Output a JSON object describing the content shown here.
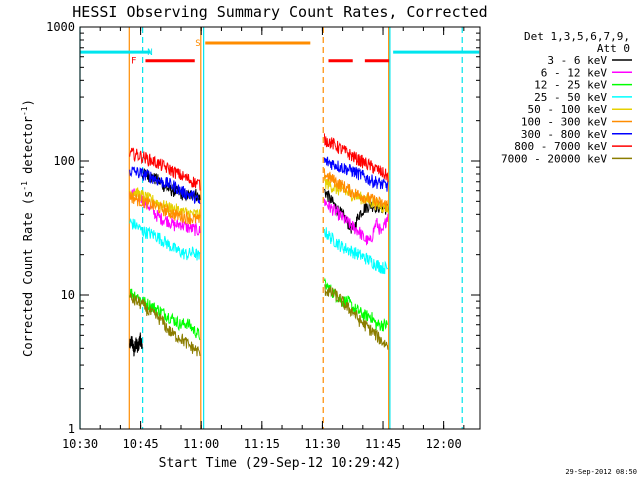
{
  "chart_data": {
    "type": "line",
    "title": "HESSI Observing Summary Count Rates, Corrected",
    "xlabel": "Start Time (29-Sep-12 10:29:42)",
    "ylabel": "Corrected Count Rate (s⁻¹ detector⁻¹)",
    "ylabel_main": "Corrected Count Rate (s",
    "ylabel_sup1": "-1",
    "ylabel_mid": " detector",
    "ylabel_sup2": "-1",
    "ylabel_end": ")",
    "yscale": "log",
    "xlim_minutes": [
      630,
      729
    ],
    "ylim": [
      1,
      1000
    ],
    "x_ticks": [
      {
        "m": 630,
        "label": "10:30"
      },
      {
        "m": 645,
        "label": "10:45"
      },
      {
        "m": 660,
        "label": "11:00"
      },
      {
        "m": 675,
        "label": "11:15"
      },
      {
        "m": 690,
        "label": "11:30"
      },
      {
        "m": 705,
        "label": "11:45"
      },
      {
        "m": 720,
        "label": "12:00"
      }
    ],
    "y_ticks": [
      {
        "v": 1,
        "label": "1"
      },
      {
        "v": 10,
        "label": "10"
      },
      {
        "v": 100,
        "label": "100"
      },
      {
        "v": 1000,
        "label": "1000"
      }
    ],
    "legend": {
      "placement": "right",
      "header1": "Det 1,3,5,6,7,9,",
      "header2": "Att 0"
    },
    "series": [
      {
        "name": "3 - 6 keV",
        "color": "#000000",
        "segments": [
          {
            "start": 642.3,
            "end": 645.4,
            "values": [
              4.2,
              4.6,
              3.8,
              4.5,
              4.0,
              4.8,
              4.1
            ]
          },
          {
            "start": 645.4,
            "end": 659.7,
            "values": [
              80,
              79,
              75,
              72,
              66,
              62,
              60,
              58,
              56,
              55,
              58,
              52
            ]
          },
          {
            "start": 690.5,
            "end": 706.2,
            "values": [
              60,
              52,
              45,
              40,
              35,
              30,
              40,
              45,
              47,
              46,
              45,
              44
            ]
          }
        ]
      },
      {
        "name": "6 - 12 keV",
        "color": "#ff00ff",
        "segments": [
          {
            "start": 642.3,
            "end": 659.7,
            "values": [
              58,
              56,
              52,
              46,
              40,
              37,
              36,
              33,
              34,
              32,
              31,
              30
            ]
          },
          {
            "start": 690.5,
            "end": 706.2,
            "values": [
              50,
              45,
              42,
              38,
              35,
              32,
              30,
              26,
              25,
              35,
              28,
              40
            ]
          }
        ]
      },
      {
        "name": "12 - 25 keV",
        "color": "#00ff00",
        "segments": [
          {
            "start": 642.3,
            "end": 659.7,
            "values": [
              10.5,
              10,
              9,
              8.5,
              8,
              7.5,
              7,
              6.5,
              6,
              6.2,
              5.5,
              5
            ]
          },
          {
            "start": 690.5,
            "end": 706.2,
            "values": [
              12,
              11,
              10,
              9,
              9,
              8,
              7.5,
              7,
              7,
              6,
              6,
              6
            ]
          }
        ]
      },
      {
        "name": "25 - 50 keV",
        "color": "#00ffff",
        "segments": [
          {
            "start": 642.3,
            "end": 659.7,
            "values": [
              35,
              33,
              30,
              29,
              28,
              26,
              24,
              22,
              21,
              20,
              21,
              19
            ]
          },
          {
            "start": 690.5,
            "end": 706.2,
            "values": [
              30,
              27,
              25,
              23,
              22,
              21,
              20,
              19,
              18,
              17,
              16,
              16
            ]
          }
        ]
      },
      {
        "name": "50 - 100 keV",
        "color": "#e6d000",
        "segments": [
          {
            "start": 642.3,
            "end": 659.7,
            "values": [
              60,
              58,
              55,
              52,
              50,
              47,
              45,
              44,
              42,
              41,
              40,
              40
            ]
          },
          {
            "start": 690.5,
            "end": 706.2,
            "values": [
              70,
              66,
              62,
              60,
              58,
              56,
              54,
              52,
              50,
              48,
              46,
              45
            ]
          }
        ]
      },
      {
        "name": "100 - 300 keV",
        "color": "#ff8c00",
        "segments": [
          {
            "start": 642.3,
            "end": 659.7,
            "values": [
              55,
              52,
              50,
              48,
              46,
              44,
              42,
              40,
              39,
              38,
              37,
              36
            ]
          },
          {
            "start": 690.5,
            "end": 706.2,
            "values": [
              80,
              75,
              70,
              66,
              62,
              58,
              56,
              54,
              52,
              50,
              48,
              47
            ]
          }
        ]
      },
      {
        "name": "300 - 800 keV",
        "color": "#0000ff",
        "segments": [
          {
            "start": 642.3,
            "end": 659.7,
            "values": [
              85,
              83,
              80,
              78,
              74,
              70,
              68,
              65,
              60,
              57,
              55,
              48
            ]
          },
          {
            "start": 690.5,
            "end": 706.2,
            "values": [
              100,
              97,
              94,
              90,
              87,
              84,
              80,
              76,
              72,
              70,
              67,
              65
            ]
          }
        ]
      },
      {
        "name": "800 - 7000 keV",
        "color": "#ff0000",
        "segments": [
          {
            "start": 642.3,
            "end": 659.7,
            "values": [
              115,
              112,
              108,
              103,
              98,
              93,
              88,
              83,
              78,
              74,
              70,
              67
            ]
          },
          {
            "start": 690.5,
            "end": 706.2,
            "values": [
              145,
              138,
              130,
              122,
              115,
              108,
              102,
              97,
              92,
              87,
              82,
              77
            ]
          }
        ]
      },
      {
        "name": "7000 - 20000 keV",
        "color": "#8b7d00",
        "segments": [
          {
            "start": 642.3,
            "end": 659.7,
            "values": [
              9.5,
              9,
              8.5,
              7.5,
              7,
              6.5,
              5.5,
              5,
              4.8,
              4.3,
              4,
              3.7
            ]
          },
          {
            "start": 690.5,
            "end": 706.2,
            "values": [
              11,
              10.5,
              10,
              9,
              8,
              7.5,
              6.5,
              6,
              5.5,
              5,
              4.5,
              4.2
            ]
          }
        ]
      }
    ],
    "flags": [
      {
        "label": "F",
        "color": "#ff0000",
        "y": 560,
        "label_m": 643.3,
        "segments": [
          [
            646.2,
            658.4
          ]
        ]
      },
      {
        "label": "N",
        "color": "#00e5ee",
        "y": 650,
        "label_m": 647.3,
        "segments": [
          [
            630.0,
            647.5
          ],
          [
            707.5,
            728.8
          ]
        ]
      },
      {
        "label": "S",
        "color": "#ff8c00",
        "y": 760,
        "label_m": 659.2,
        "segments": [
          [
            661.0,
            687.0
          ]
        ]
      },
      {
        "label": "",
        "color": "#ff0000",
        "y": 560,
        "label_m": null,
        "segments": [
          [
            691.5,
            697.5
          ],
          [
            700.5,
            706.5
          ]
        ]
      }
    ],
    "vertical_markers": [
      {
        "m": 630.0,
        "color": "#00e5ee",
        "style": "solid"
      },
      {
        "m": 645.5,
        "color": "#00e5ee",
        "style": "dashed"
      },
      {
        "m": 642.2,
        "color": "#ff8c00",
        "style": "solid"
      },
      {
        "m": 659.9,
        "color": "#ff8c00",
        "style": "solid"
      },
      {
        "m": 660.6,
        "color": "#00e5ee",
        "style": "solid"
      },
      {
        "m": 690.2,
        "color": "#ff8c00",
        "style": "dashed"
      },
      {
        "m": 706.4,
        "color": "#ff8c00",
        "style": "solid"
      },
      {
        "m": 706.7,
        "color": "#00e5ee",
        "style": "solid"
      },
      {
        "m": 724.6,
        "color": "#00e5ee",
        "style": "dashed"
      }
    ]
  },
  "footer": {
    "timestamp": "29-Sep-2012 08:50"
  }
}
